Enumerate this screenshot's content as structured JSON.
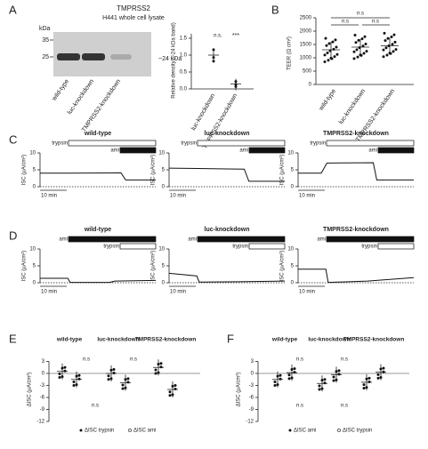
{
  "panel_a": {
    "letter": "A",
    "title": "TMPRSS2",
    "subtitle": "H441 whole cell lysate",
    "blot": {
      "unit": "kDa",
      "markers": [
        "35",
        "25"
      ],
      "band": "~24 kDa",
      "lanes": [
        "wild-type",
        "luc-knockdown",
        "TMPRSS2-knockdown"
      ]
    },
    "density": {
      "y_label": "Relative density (~24 kDa band)",
      "yticks": [
        "0.0",
        "0.5",
        "1.0",
        "1.5"
      ],
      "annotations": [
        "n.s.",
        "***"
      ],
      "categories": [
        "luc-knockdown",
        "TMPRSS2-knockdown"
      ]
    }
  },
  "panel_b": {
    "letter": "B",
    "y_label": "TEER (Ω cm²)",
    "yticks": [
      "0",
      "500",
      "1000",
      "1500",
      "2000",
      "2500"
    ],
    "annotations": [
      "n.s",
      "n.s",
      "n.s"
    ],
    "categories": [
      "wild-type",
      "luc-knockdown",
      "TMPRSS2-knockdown"
    ]
  },
  "panel_c": {
    "letter": "C",
    "titles": [
      "wild-type",
      "luc-knockdown",
      "TMPRSS2-knockdown"
    ],
    "first": "trypsin",
    "second": "ami",
    "y_label": "ISC (µA/cm²)",
    "yticks": [
      "0",
      "5",
      "10"
    ],
    "scale": "10 min"
  },
  "panel_d": {
    "letter": "D",
    "titles": [
      "wild-type",
      "luc-knockdown",
      "TMPRSS2-knockdown"
    ],
    "first": "ami",
    "second": "trypsin",
    "y_label": "ISC (µA/cm²)",
    "yticks": [
      "0",
      "5",
      "10"
    ],
    "scale": "10 min"
  },
  "panel_e": {
    "letter": "E",
    "groups": [
      "wild-type",
      "luc-knockdown",
      "TMPRSS2-knockdown"
    ],
    "y_label": "ΔISC (µA/cm²)",
    "yticks": [
      "3",
      "0",
      "-3",
      "-6",
      "-9",
      "-12"
    ],
    "annotations": [
      "n.s",
      "n.s",
      "n.s"
    ],
    "legend": [
      "ΔISC trypsin",
      "ΔISC ami"
    ]
  },
  "panel_f": {
    "letter": "F",
    "groups": [
      "wild-type",
      "luc-knockdown",
      "TMPRSS2-knockdown"
    ],
    "y_label": "ΔISC (µA/cm²)",
    "yticks": [
      "3",
      "0",
      "-3",
      "-6",
      "-9",
      "-12"
    ],
    "annotations": [
      "n.s",
      "n.s",
      "n.s",
      "n.s"
    ],
    "legend": [
      "ΔISC ami",
      "ΔISC trypsin"
    ]
  }
}
